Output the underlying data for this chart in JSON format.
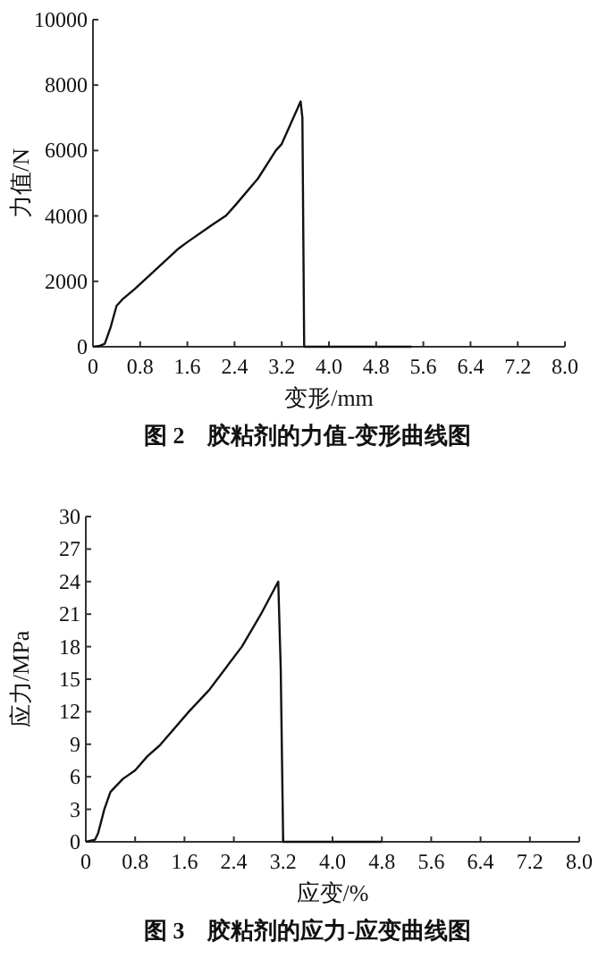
{
  "chart_data": [
    {
      "type": "line",
      "title": "图 2　胶粘剂的力值-变形曲线图",
      "xlabel": "变形/mm",
      "ylabel": "力值/N",
      "xlim": [
        0,
        8
      ],
      "xticks": [
        {
          "value": 0,
          "label": "0"
        },
        0.8,
        1.6,
        2.4,
        3.2,
        {
          "value": 4,
          "label": "4.0"
        },
        4.8,
        5.6,
        6.4,
        7.2,
        {
          "value": 8,
          "label": "8.0"
        }
      ],
      "ylim": [
        0,
        10000
      ],
      "yticks": [
        0,
        2000,
        4000,
        6000,
        8000,
        10000
      ],
      "grid": false,
      "marker": "none",
      "line_style": "solid",
      "series": [
        {
          "color": "#111111",
          "x": [
            0,
            0.1,
            0.2,
            0.3,
            0.4,
            0.5,
            0.7,
            1.0,
            1.45,
            1.6,
            2.0,
            2.25,
            2.4,
            2.8,
            3.1,
            3.2,
            3.52,
            3.55,
            3.58,
            5.4
          ],
          "values": [
            0,
            20,
            90,
            600,
            1250,
            1450,
            1750,
            2250,
            3000,
            3200,
            3700,
            4000,
            4300,
            5150,
            6000,
            6200,
            7500,
            7000,
            0,
            0
          ]
        }
      ]
    },
    {
      "type": "line",
      "title": "图 3　胶粘剂的应力-应变曲线图",
      "xlabel": "应变/%",
      "ylabel": "应力/MPa",
      "xlim": [
        0,
        8
      ],
      "xticks": [
        {
          "value": 0,
          "label": "0"
        },
        0.8,
        1.6,
        2.4,
        3.2,
        {
          "value": 4,
          "label": "4.0"
        },
        4.8,
        5.6,
        6.4,
        7.2,
        {
          "value": 8,
          "label": "8.0"
        }
      ],
      "ylim": [
        0,
        30
      ],
      "yticks": [
        0,
        3,
        6,
        9,
        12,
        15,
        18,
        21,
        24,
        27,
        30
      ],
      "grid": false,
      "marker": "none",
      "line_style": "solid",
      "series": [
        {
          "color": "#111111",
          "x": [
            0,
            0.15,
            0.2,
            0.3,
            0.4,
            0.6,
            0.8,
            1.0,
            1.2,
            1.67,
            2.0,
            2.53,
            2.84,
            3.12,
            3.16,
            3.2,
            4.8
          ],
          "values": [
            0,
            0.2,
            0.8,
            3,
            4.6,
            5.8,
            6.6,
            7.9,
            8.9,
            12,
            14,
            18,
            21,
            24,
            16,
            0,
            0
          ]
        }
      ]
    }
  ]
}
